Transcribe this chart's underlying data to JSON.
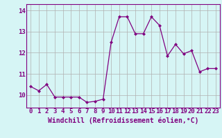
{
  "x": [
    0,
    1,
    2,
    3,
    4,
    5,
    6,
    7,
    8,
    9,
    10,
    11,
    12,
    13,
    14,
    15,
    16,
    17,
    18,
    19,
    20,
    21,
    22,
    23
  ],
  "y": [
    10.4,
    10.2,
    10.5,
    9.9,
    9.9,
    9.9,
    9.9,
    9.65,
    9.7,
    9.8,
    12.5,
    13.7,
    13.7,
    12.9,
    12.9,
    13.7,
    13.3,
    11.85,
    12.4,
    11.95,
    12.1,
    11.1,
    11.25,
    11.25
  ],
  "line_color": "#800080",
  "marker": "D",
  "marker_size": 2,
  "bg_color": "#d6f5f5",
  "grid_color": "#b0b0b0",
  "xlabel": "Windchill (Refroidissement éolien,°C)",
  "xlabel_fontsize": 7,
  "tick_fontsize": 6.5,
  "ylabel_ticks": [
    10,
    11,
    12,
    13,
    14
  ],
  "ylim": [
    9.4,
    14.3
  ],
  "xlim": [
    -0.5,
    23.5
  ]
}
